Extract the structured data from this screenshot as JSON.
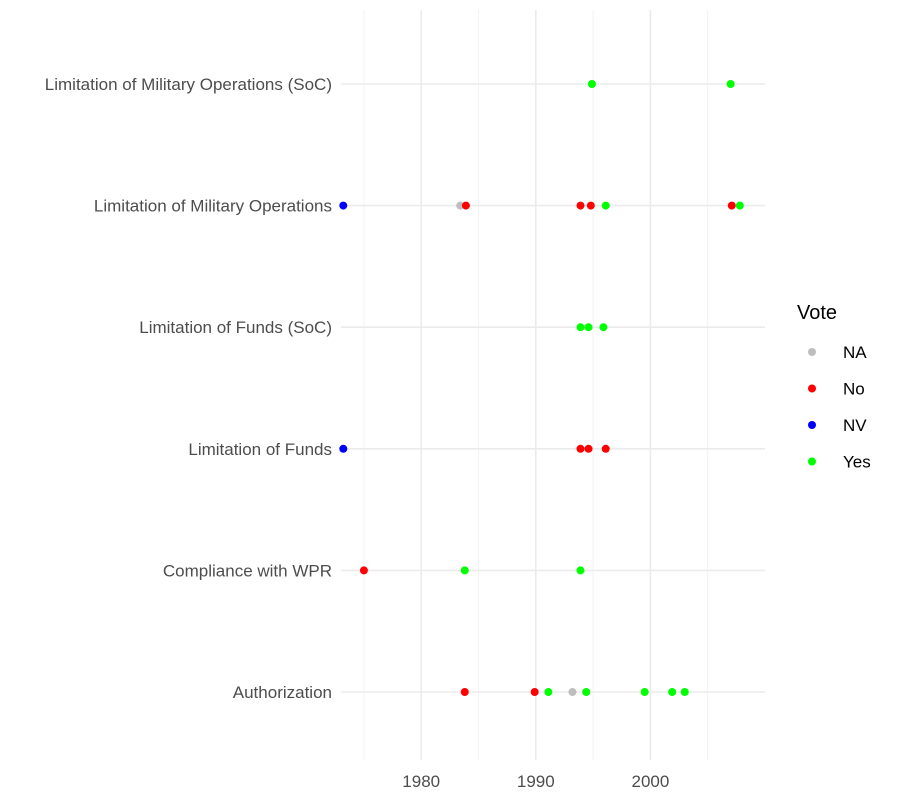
{
  "chart_data": {
    "type": "scatter",
    "xlim": [
      1973.0,
      2010.0
    ],
    "x_ticks": [
      1980,
      1990,
      2000
    ],
    "categories": [
      "Authorization",
      "Compliance with WPR",
      "Limitation of Funds",
      "Limitation of Funds (SoC)",
      "Limitation of Military Operations",
      "Limitation of Military Operations (SoC)"
    ],
    "grid": true,
    "legend": {
      "title": "Vote",
      "position": "right",
      "entries": [
        {
          "label": "NA",
          "color": "#bebebe"
        },
        {
          "label": "No",
          "color": "#ff0000"
        },
        {
          "label": "NV",
          "color": "#0000ff"
        },
        {
          "label": "Yes",
          "color": "#00ff00"
        }
      ]
    },
    "points": [
      {
        "category": "Authorization",
        "x": 1983.8,
        "vote": "No"
      },
      {
        "category": "Authorization",
        "x": 1989.9,
        "vote": "No"
      },
      {
        "category": "Authorization",
        "x": 1991.1,
        "vote": "Yes"
      },
      {
        "category": "Authorization",
        "x": 1993.2,
        "vote": "NA"
      },
      {
        "category": "Authorization",
        "x": 1994.4,
        "vote": "Yes"
      },
      {
        "category": "Authorization",
        "x": 1999.5,
        "vote": "Yes"
      },
      {
        "category": "Authorization",
        "x": 2001.9,
        "vote": "Yes"
      },
      {
        "category": "Authorization",
        "x": 2003.0,
        "vote": "Yes"
      },
      {
        "category": "Compliance with WPR",
        "x": 1975.0,
        "vote": "No"
      },
      {
        "category": "Compliance with WPR",
        "x": 1983.8,
        "vote": "Yes"
      },
      {
        "category": "Compliance with WPR",
        "x": 1993.9,
        "vote": "Yes"
      },
      {
        "category": "Limitation of Funds",
        "x": 1973.2,
        "vote": "NV"
      },
      {
        "category": "Limitation of Funds",
        "x": 1993.9,
        "vote": "No"
      },
      {
        "category": "Limitation of Funds",
        "x": 1994.6,
        "vote": "No"
      },
      {
        "category": "Limitation of Funds",
        "x": 1996.1,
        "vote": "No"
      },
      {
        "category": "Limitation of Funds (SoC)",
        "x": 1993.9,
        "vote": "Yes"
      },
      {
        "category": "Limitation of Funds (SoC)",
        "x": 1994.6,
        "vote": "Yes"
      },
      {
        "category": "Limitation of Funds (SoC)",
        "x": 1995.9,
        "vote": "Yes"
      },
      {
        "category": "Limitation of Military Operations",
        "x": 1973.2,
        "vote": "NV"
      },
      {
        "category": "Limitation of Military Operations",
        "x": 1983.4,
        "vote": "NA"
      },
      {
        "category": "Limitation of Military Operations",
        "x": 1983.9,
        "vote": "No"
      },
      {
        "category": "Limitation of Military Operations",
        "x": 1993.9,
        "vote": "No"
      },
      {
        "category": "Limitation of Military Operations",
        "x": 1994.8,
        "vote": "No"
      },
      {
        "category": "Limitation of Military Operations",
        "x": 1996.1,
        "vote": "Yes"
      },
      {
        "category": "Limitation of Military Operations",
        "x": 2007.1,
        "vote": "No"
      },
      {
        "category": "Limitation of Military Operations",
        "x": 2007.8,
        "vote": "Yes"
      },
      {
        "category": "Limitation of Military Operations (SoC)",
        "x": 1994.9,
        "vote": "Yes"
      },
      {
        "category": "Limitation of Military Operations (SoC)",
        "x": 2007.0,
        "vote": "Yes"
      }
    ]
  }
}
